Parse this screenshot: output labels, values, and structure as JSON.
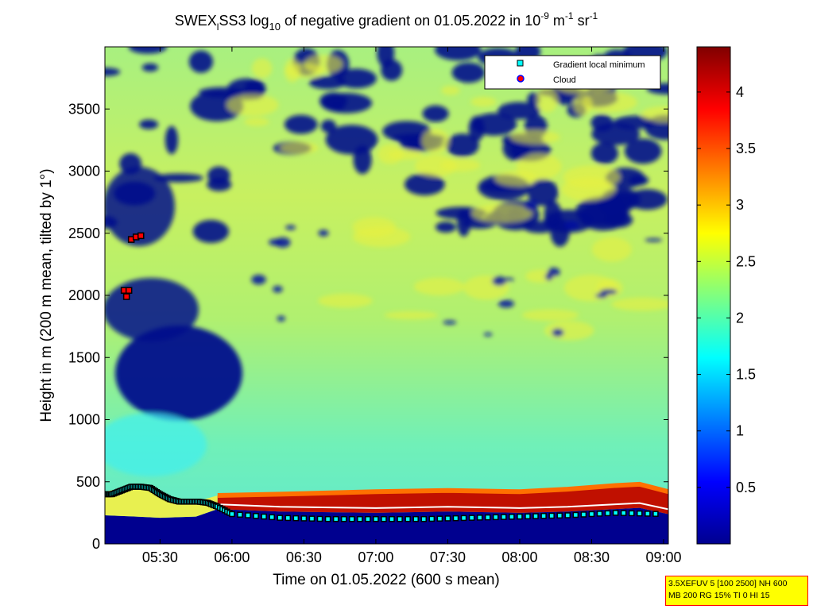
{
  "chart_data": {
    "type": "heatmap",
    "title": {
      "prefix": "SWEX",
      "sub": "l",
      "mid": "SS3 log",
      "log_base": "10",
      "suffix": " of negative gradient on 01.05.2022 in 10",
      "exp1": "-9",
      "unit1": " m",
      "exp2": "-1",
      "unit2": " sr",
      "exp3": "-1"
    },
    "xlabel": "Time on 01.05.2022 (600 s mean)",
    "ylabel": "Height in m (200 m mean, tilted by 1°)",
    "x_ticks": [
      {
        "label": "05:30",
        "value": 330
      },
      {
        "label": "06:00",
        "value": 360
      },
      {
        "label": "06:30",
        "value": 390
      },
      {
        "label": "07:00",
        "value": 420
      },
      {
        "label": "07:30",
        "value": 450
      },
      {
        "label": "08:00",
        "value": 480
      },
      {
        "label": "08:30",
        "value": 510
      },
      {
        "label": "09:00",
        "value": 540
      }
    ],
    "xlim": [
      307,
      542
    ],
    "y_ticks": [
      0,
      500,
      1000,
      1500,
      2000,
      2500,
      3000,
      3500
    ],
    "ylim": [
      0,
      4000
    ],
    "colorbar": {
      "ticks": [
        0.5,
        1,
        1.5,
        2,
        2.5,
        3,
        3.5,
        4
      ],
      "range": [
        0,
        4.4
      ],
      "colormap": "jet"
    },
    "legend": {
      "placement": "top-right",
      "entries": [
        {
          "label": "Gradient local minimum",
          "marker": "square",
          "color": "#00ffff"
        },
        {
          "label": "Cloud",
          "marker": "circle",
          "color": "#ff0000"
        }
      ]
    },
    "surface_layer": {
      "x": [
        307,
        320,
        330,
        345,
        354,
        380,
        420,
        450,
        480,
        500,
        520,
        530,
        542
      ],
      "top": [
        420,
        470,
        400,
        340,
        390,
        400,
        420,
        430,
        420,
        440,
        470,
        480,
        420
      ],
      "base": [
        230,
        220,
        210,
        220,
        280,
        260,
        250,
        260,
        250,
        260,
        280,
        290,
        240
      ]
    },
    "gradient_min_series": {
      "x": [
        307,
        310,
        314,
        318,
        322,
        326,
        330,
        334,
        338,
        342,
        346,
        350,
        354,
        360,
        380,
        400,
        420,
        440,
        460,
        480,
        500,
        520,
        540
      ],
      "y": [
        400,
        400,
        430,
        460,
        460,
        450,
        400,
        360,
        340,
        340,
        340,
        330,
        300,
        240,
        210,
        200,
        200,
        200,
        210,
        220,
        230,
        250,
        240
      ]
    },
    "cloud_points": [
      {
        "x": 318,
        "y": 2450
      },
      {
        "x": 320,
        "y": 2470
      },
      {
        "x": 322,
        "y": 2480
      },
      {
        "x": 315,
        "y": 2040
      },
      {
        "x": 317,
        "y": 2040
      },
      {
        "x": 316,
        "y": 1990
      }
    ]
  },
  "info_box": {
    "line1": "3.5XEFUV 5 [100 2500] NH 600",
    "line2": "MB 200 RG 15% TI 0 HI 15"
  }
}
